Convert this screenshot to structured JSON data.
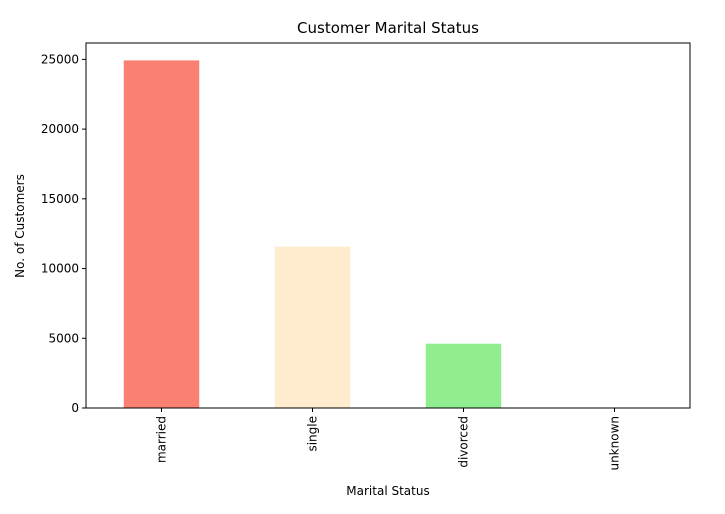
{
  "chart_data": {
    "type": "bar",
    "title": "Customer Marital Status",
    "xlabel": "Marital Status",
    "ylabel": "No. of Customers",
    "categories": [
      "married",
      "single",
      "divorced",
      "unknown"
    ],
    "values": [
      24928,
      11568,
      4612,
      80
    ],
    "colors": [
      "#fa8072",
      "#ffebcd",
      "#90ee90",
      "#ffffff"
    ],
    "ylim": [
      0,
      26174
    ],
    "yticks": [
      {
        "value": 0,
        "label": "0"
      },
      {
        "value": 5000,
        "label": "5000"
      },
      {
        "value": 10000,
        "label": "10000"
      },
      {
        "value": 15000,
        "label": "15000"
      },
      {
        "value": 20000,
        "label": "20000"
      },
      {
        "value": 25000,
        "label": "25000"
      }
    ],
    "grid": false,
    "legend": "none"
  }
}
